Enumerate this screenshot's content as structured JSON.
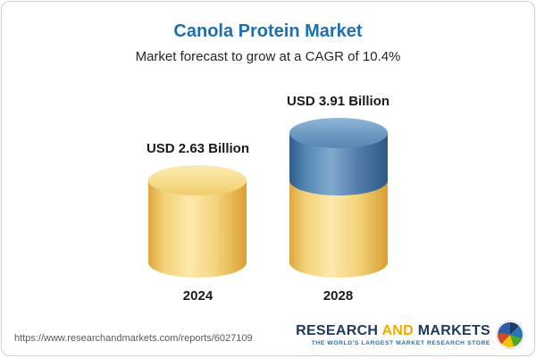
{
  "page": {
    "title": "Canola Protein Market",
    "subtitle": "Market forecast to grow at a CAGR of 10.4%"
  },
  "chart_data": {
    "type": "bar",
    "variant": "3d-cylinder",
    "title": "Canola Protein Market",
    "subtitle": "Market forecast to grow at a CAGR of 10.4%",
    "cagr_percent": 10.4,
    "unit": "USD Billion",
    "categories": [
      "2024",
      "2028"
    ],
    "values": [
      2.63,
      3.91
    ],
    "value_labels": [
      "USD 2.63 Billion",
      "USD 3.91 Billion"
    ],
    "series_note": "2028 bar is stacked: base segment equals 2024 value (yellow), growth segment is the increase to 3.91 (blue)",
    "legend": "none",
    "axes": "none",
    "colors": {
      "base_segment": "#F5D57D",
      "growth_segment": "#5285B2",
      "title_text": "#1E6FAD"
    }
  },
  "footer": {
    "url": "https://www.researchandmarkets.com/reports/6027109",
    "logo": {
      "word1": "RESEARCH",
      "word2": "AND",
      "word3": "MARKETS",
      "tagline": "THE WORLD'S LARGEST MARKET RESEARCH STORE",
      "icon": "globe-icon"
    }
  }
}
